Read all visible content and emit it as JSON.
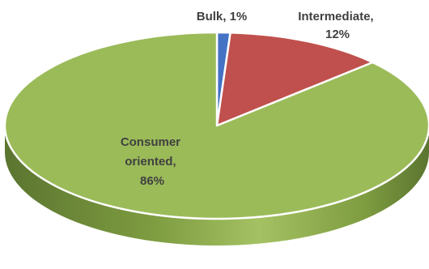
{
  "chart_data": {
    "type": "pie",
    "style": "3d",
    "slices": [
      {
        "label": "Bulk",
        "value": 1,
        "color": "#4472c4",
        "data_label": [
          "Bulk, 1%"
        ]
      },
      {
        "label": "Intermediate",
        "value": 12,
        "color": "#c0504d",
        "data_label": [
          "Intermediate,",
          "12%"
        ]
      },
      {
        "label": "Consumer oriented",
        "value": 86,
        "color": "#9bbb59",
        "data_label": [
          "Consumer",
          "oriented,",
          "86%"
        ]
      }
    ],
    "title": "",
    "legend": "none"
  }
}
